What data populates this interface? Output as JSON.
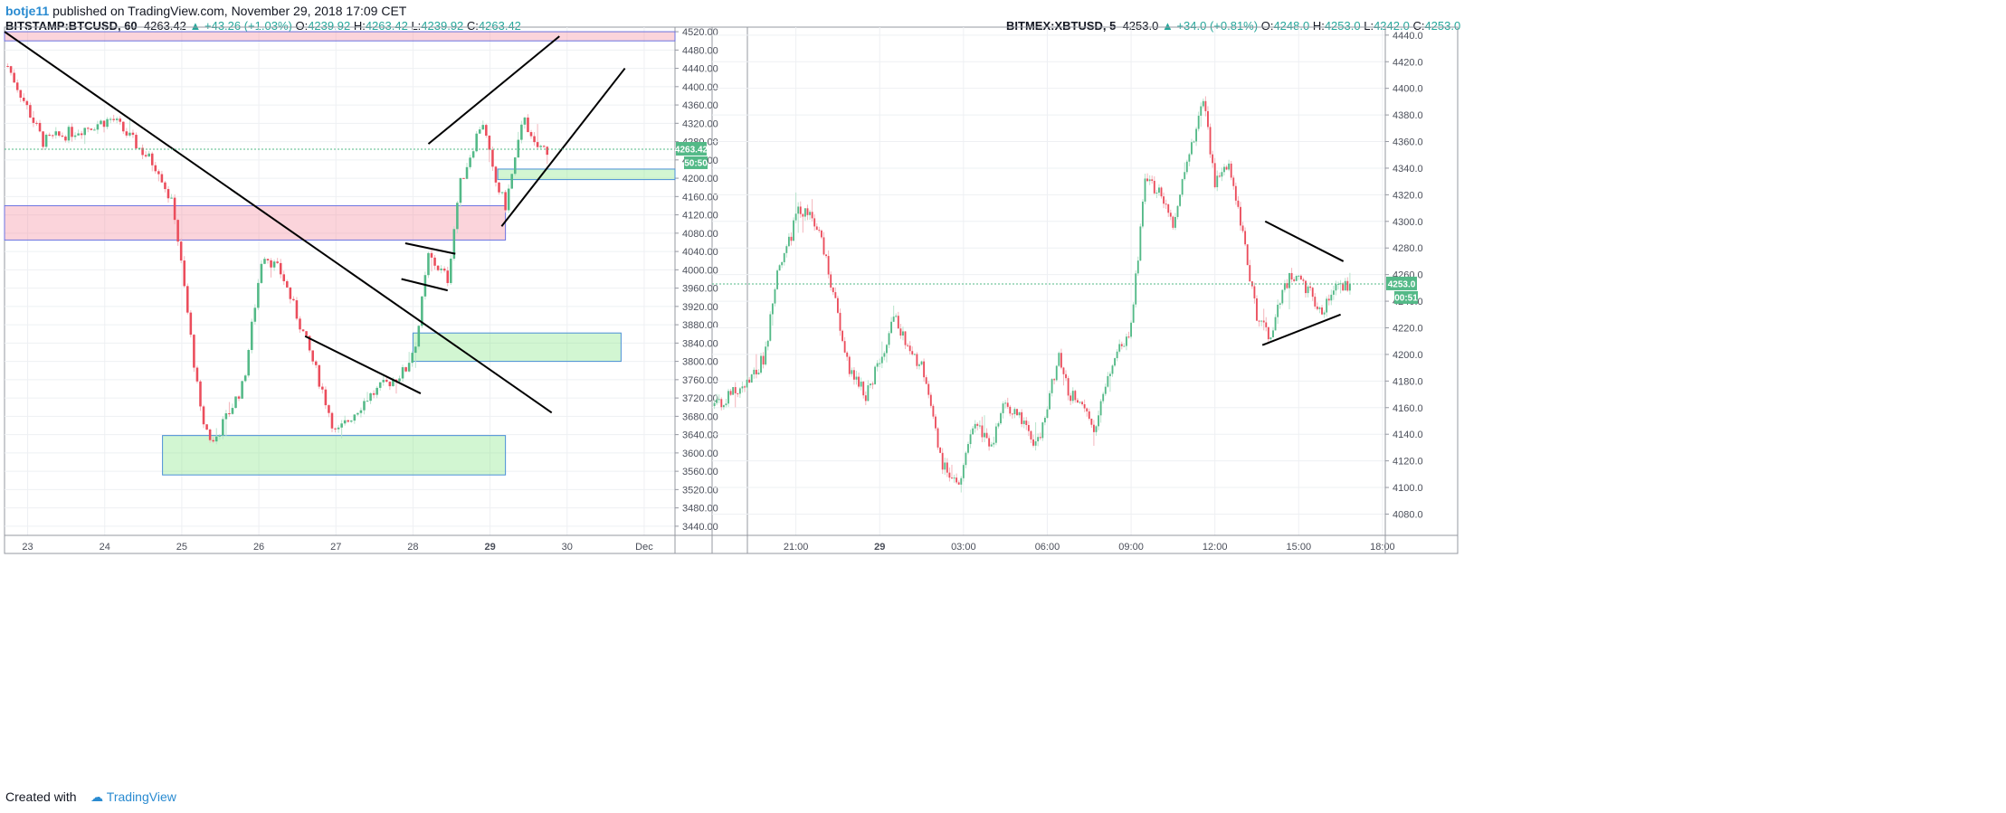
{
  "header": {
    "user": "botje11",
    "published": "published on TradingView.com, November 29, 2018 17:09 CET"
  },
  "footer": {
    "created_with": "Created with",
    "brand": "TradingView"
  },
  "chart_data": [
    {
      "type": "candlestick",
      "symbol": "BITSTAMP:BTCUSD, 60",
      "last": "4263.42",
      "change": "▲ +43.26 (+1.03%)",
      "o_label": "O:",
      "o": "4239.92",
      "h_label": "H:",
      "h": "4263.42",
      "l_label": "L:",
      "l": "4239.92",
      "c_label": "C:",
      "c": "4263.42",
      "price_tag": "4263.42",
      "countdown_tag": "50:50",
      "ylim": [
        3420,
        4530
      ],
      "yticks": [
        "4520.00",
        "4480.00",
        "4440.00",
        "4400.00",
        "4360.00",
        "4320.00",
        "4280.00",
        "4240.00",
        "4200.00",
        "4160.00",
        "4120.00",
        "4080.00",
        "4040.00",
        "4000.00",
        "3960.00",
        "3920.00",
        "3880.00",
        "3840.00",
        "3800.00",
        "3760.00",
        "3720.00",
        "3680.00",
        "3640.00",
        "3600.00",
        "3560.00",
        "3520.00",
        "3480.00",
        "3440.00"
      ],
      "xticks": [
        "23",
        "24",
        "25",
        "26",
        "27",
        "28",
        "29",
        "30",
        "Dec"
      ],
      "x_range_days": [
        22.7,
        31.4
      ],
      "xtick_days": [
        23,
        24,
        25,
        26,
        27,
        28,
        29,
        30,
        31
      ],
      "path_t": [
        22.7,
        23.2,
        24.1,
        24.7,
        24.9,
        25.25,
        25.4,
        25.8,
        26.05,
        26.3,
        26.6,
        26.8,
        27.0,
        27.4,
        27.9,
        28.05,
        28.2,
        28.45,
        28.6,
        28.9,
        29.05,
        29.2,
        29.45,
        29.55,
        29.75
      ],
      "path_p": [
        4460,
        4280,
        4330,
        4220,
        4130,
        3680,
        3620,
        3750,
        4040,
        3990,
        3850,
        3750,
        3640,
        3720,
        3780,
        3850,
        4030,
        3980,
        4180,
        4330,
        4200,
        4140,
        4340,
        4270,
        4263
      ],
      "zones": [
        {
          "kind": "resistance",
          "t0": 22.7,
          "t1": 31.4,
          "p0": 4500,
          "p1": 4520
        },
        {
          "kind": "resistance",
          "t0": 22.7,
          "t1": 29.2,
          "p0": 4065,
          "p1": 4140
        },
        {
          "kind": "support",
          "t0": 29.1,
          "t1": 31.4,
          "p0": 4197,
          "p1": 4220
        },
        {
          "kind": "support",
          "t0": 28.0,
          "t1": 30.7,
          "p0": 3800,
          "p1": 3862
        },
        {
          "kind": "support",
          "t0": 24.75,
          "t1": 29.2,
          "p0": 3552,
          "p1": 3638
        }
      ],
      "lines": [
        {
          "t0": 22.7,
          "p0": 4520,
          "t1": 29.8,
          "p1": 3688
        },
        {
          "t0": 26.6,
          "p0": 3855,
          "t1": 28.1,
          "p1": 3730
        },
        {
          "t0": 28.2,
          "p0": 4275,
          "t1": 29.9,
          "p1": 4510
        },
        {
          "t0": 29.15,
          "p0": 4095,
          "t1": 30.75,
          "p1": 4440
        },
        {
          "t0": 27.9,
          "p0": 4058,
          "t1": 28.55,
          "p1": 4035
        },
        {
          "t0": 27.85,
          "p0": 3980,
          "t1": 28.45,
          "p1": 3955
        }
      ]
    },
    {
      "type": "candlestick",
      "symbol": "BITMEX:XBTUSD, 5",
      "last": "4253.0",
      "change": "▲ +34.0 (+0.81%)",
      "o_label": "O:",
      "o": "4248.0",
      "h_label": "H:",
      "h": "4253.0",
      "l_label": "L:",
      "l": "4242.0",
      "c_label": "C:",
      "c": "4253.0",
      "price_tag": "4253.0",
      "countdown_tag": "00:51",
      "ylim": [
        4064,
        4446
      ],
      "yticks": [
        "4440.0",
        "4420.0",
        "4400.0",
        "4380.0",
        "4360.0",
        "4340.0",
        "4320.0",
        "4300.0",
        "4280.0",
        "4260.0",
        "4240.0",
        "4220.0",
        "4200.0",
        "4180.0",
        "4160.0",
        "4140.0",
        "4120.0",
        "4100.0",
        "4080.0"
      ],
      "xticks": [
        "21:00",
        "29",
        "03:00",
        "06:00",
        "09:00",
        "12:00",
        "15:00",
        "18:00"
      ],
      "x_range_hours": [
        18.0,
        42.1
      ],
      "xtick_hours": [
        21,
        24,
        27,
        30,
        33,
        36,
        39,
        42
      ],
      "path_t": [
        18.0,
        19.4,
        19.9,
        20.3,
        20.7,
        21.1,
        21.7,
        22.1,
        22.5,
        22.9,
        23.5,
        24.1,
        24.5,
        25.1,
        25.5,
        26.2,
        26.8,
        27.4,
        28.0,
        28.4,
        29.2,
        29.6,
        30.0,
        30.4,
        30.8,
        31.3,
        31.7,
        32.0,
        32.5,
        33.0,
        33.5,
        34.1,
        34.5,
        35.1,
        35.6,
        36.0,
        36.5,
        36.9,
        37.5,
        38.0,
        38.3,
        38.7,
        39.3,
        39.8,
        40.2,
        40.9
      ],
      "path_p": [
        4160,
        4180,
        4200,
        4260,
        4280,
        4310,
        4300,
        4270,
        4230,
        4190,
        4170,
        4200,
        4230,
        4200,
        4190,
        4120,
        4100,
        4150,
        4130,
        4160,
        4150,
        4130,
        4160,
        4200,
        4170,
        4160,
        4140,
        4170,
        4200,
        4220,
        4330,
        4320,
        4300,
        4350,
        4390,
        4330,
        4340,
        4300,
        4230,
        4210,
        4240,
        4260,
        4250,
        4230,
        4250,
        4253
      ],
      "lines": [
        {
          "t0": 37.8,
          "p0": 4300,
          "t1": 40.6,
          "p1": 4270
        },
        {
          "t0": 37.7,
          "p0": 4207,
          "t1": 40.5,
          "p1": 4230
        }
      ]
    }
  ]
}
